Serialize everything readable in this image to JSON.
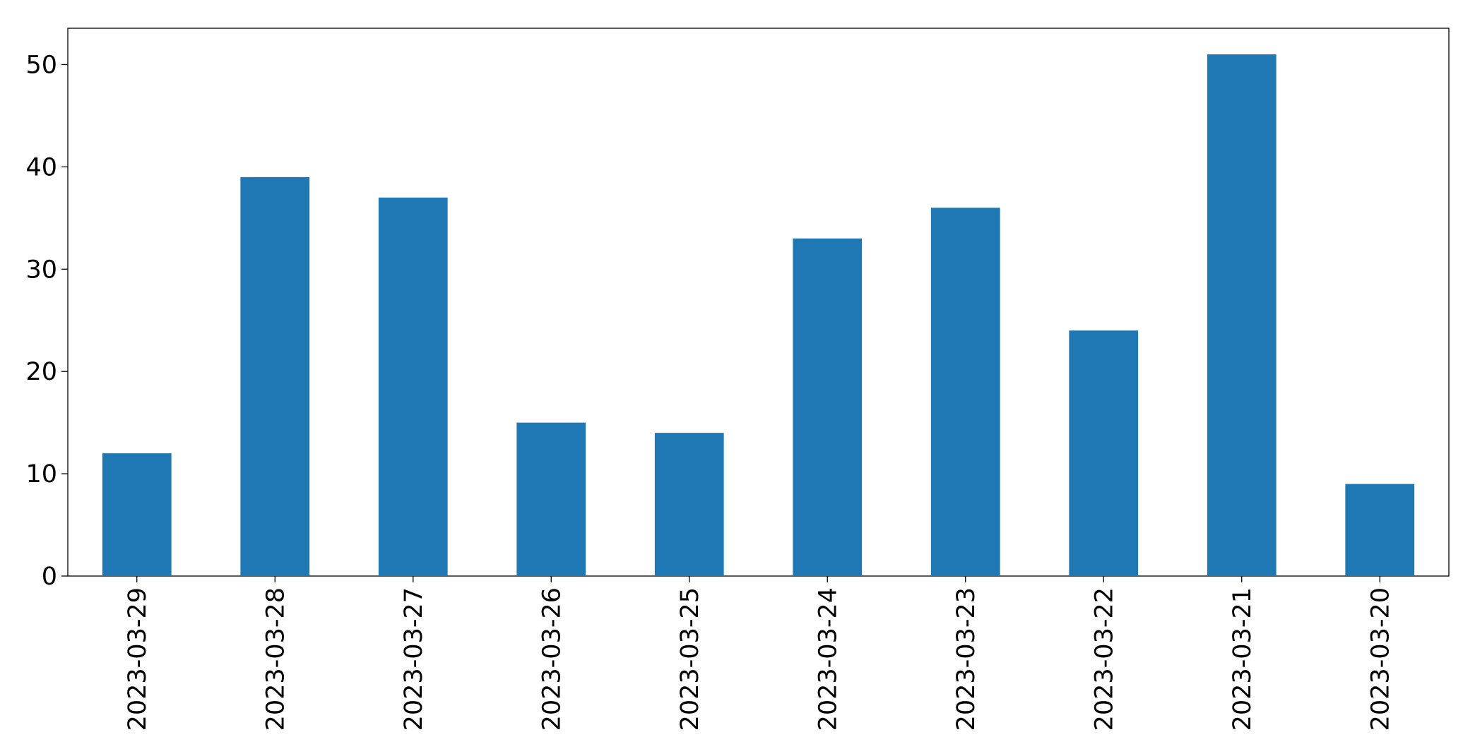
{
  "chart_data": {
    "type": "bar",
    "categories": [
      "2023-03-29",
      "2023-03-28",
      "2023-03-27",
      "2023-03-26",
      "2023-03-25",
      "2023-03-24",
      "2023-03-23",
      "2023-03-22",
      "2023-03-21",
      "2023-03-20"
    ],
    "values": [
      12,
      39,
      37,
      15,
      14,
      33,
      36,
      24,
      51,
      9
    ],
    "color": "#1f77b4",
    "ylim": [
      0,
      53.55
    ],
    "yticks": [
      0,
      10,
      20,
      30,
      40,
      50
    ],
    "grid": false
  }
}
